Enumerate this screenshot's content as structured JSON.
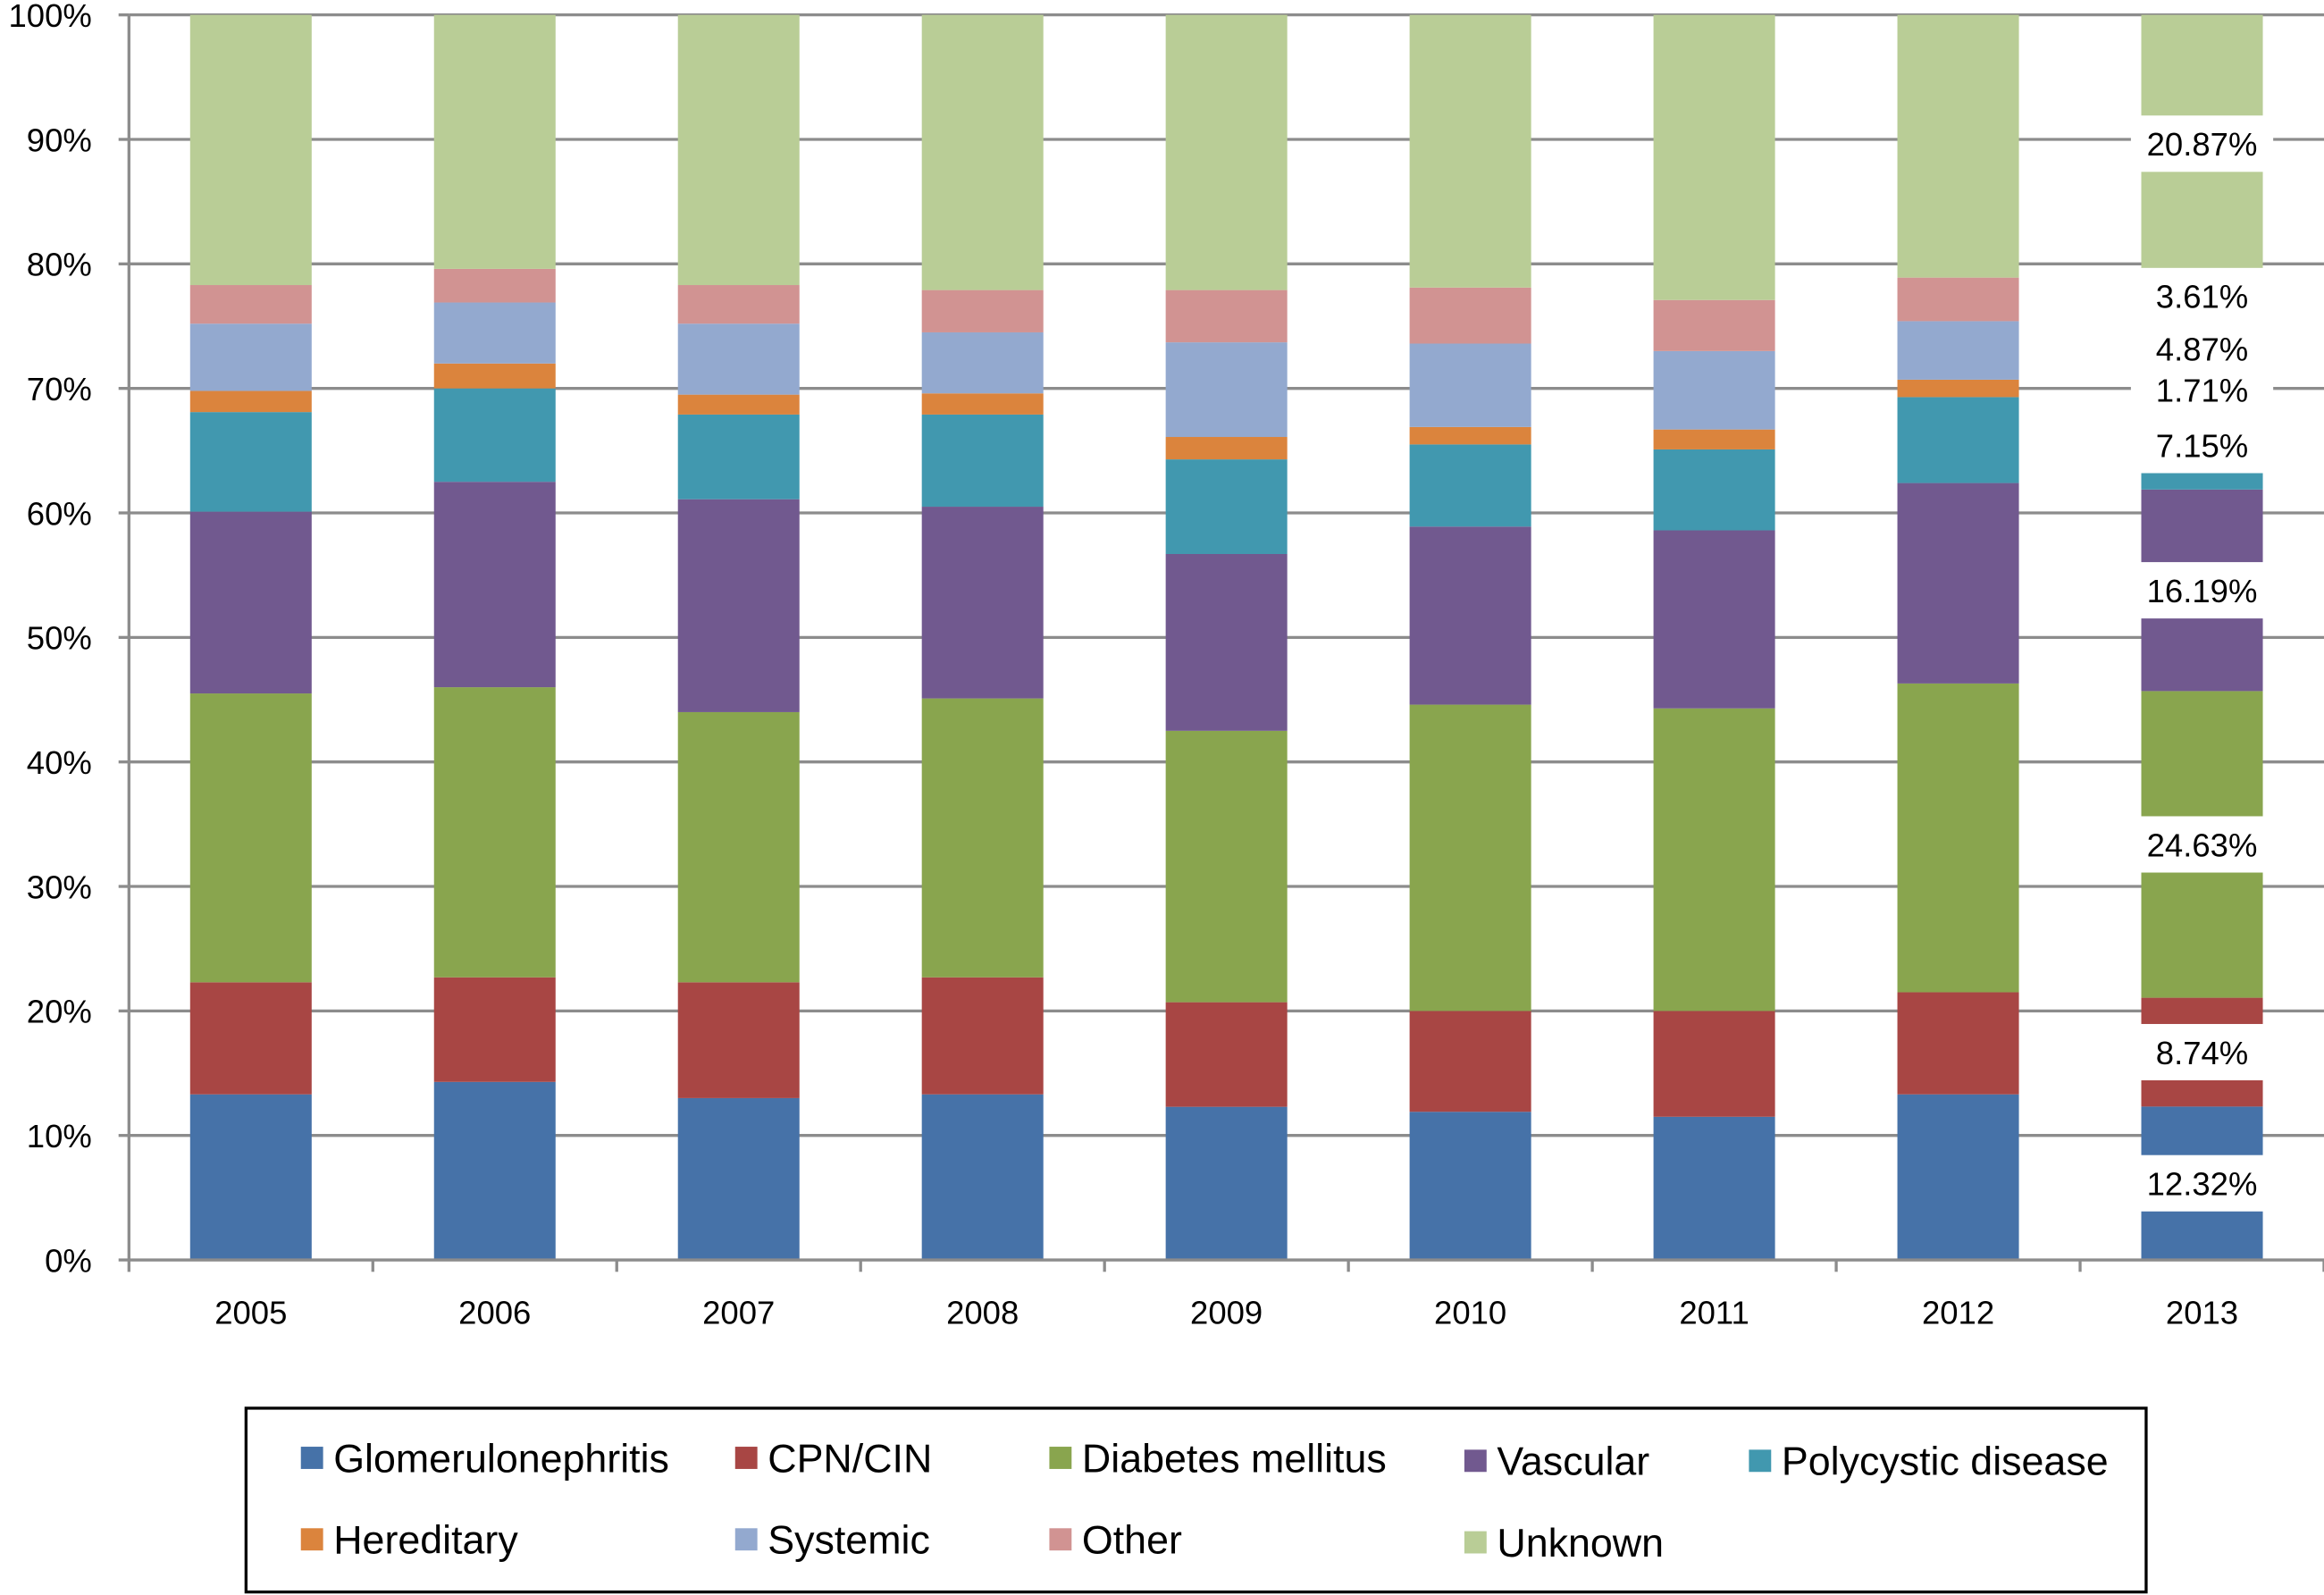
{
  "chart_data": {
    "type": "stacked-bar-100",
    "categories": [
      "2005",
      "2006",
      "2007",
      "2008",
      "2009",
      "2010",
      "2011",
      "2012",
      "2013"
    ],
    "ylim": [
      0,
      100
    ],
    "yticks": [
      "0%",
      "10%",
      "20%",
      "30%",
      "40%",
      "50%",
      "60%",
      "70%",
      "80%",
      "90%",
      "100%"
    ],
    "grid": true,
    "legend_position": "bottom",
    "series": [
      {
        "name": "Glomerulonephritis",
        "color": "#4672a8",
        "values": [
          13.3,
          14.3,
          13.0,
          13.3,
          12.3,
          11.9,
          11.5,
          13.3,
          12.32
        ]
      },
      {
        "name": "CPN/CIN",
        "color": "#a84644",
        "values": [
          9.0,
          8.4,
          9.3,
          9.4,
          8.4,
          8.1,
          8.5,
          8.2,
          8.74
        ]
      },
      {
        "name": "Diabetes mellitus",
        "color": "#89a54e",
        "values": [
          23.2,
          23.3,
          21.7,
          22.4,
          21.8,
          24.6,
          24.3,
          24.8,
          24.63
        ]
      },
      {
        "name": "Vascular",
        "color": "#71598f",
        "values": [
          14.6,
          16.5,
          17.1,
          15.4,
          14.2,
          14.3,
          14.3,
          16.1,
          16.19
        ]
      },
      {
        "name": "Polycystic disease",
        "color": "#4198af",
        "values": [
          8.0,
          7.5,
          6.8,
          7.4,
          7.6,
          6.6,
          6.5,
          6.9,
          7.15
        ]
      },
      {
        "name": "Hereditary",
        "color": "#db843d",
        "values": [
          1.7,
          2.0,
          1.6,
          1.7,
          1.8,
          1.4,
          1.6,
          1.4,
          1.71
        ]
      },
      {
        "name": "Systemic",
        "color": "#93a9cf",
        "values": [
          5.4,
          4.9,
          5.7,
          4.9,
          7.6,
          6.7,
          6.3,
          4.7,
          4.87
        ]
      },
      {
        "name": "Other",
        "color": "#d19392",
        "values": [
          3.1,
          2.7,
          3.1,
          3.4,
          4.2,
          4.5,
          4.1,
          3.5,
          3.61
        ]
      },
      {
        "name": "Unknown",
        "color": "#b9cd96",
        "values": [
          21.7,
          20.4,
          21.7,
          22.1,
          22.1,
          21.9,
          22.9,
          21.1,
          20.87
        ]
      }
    ],
    "data_labels": {
      "category": "2013",
      "labels": [
        "12.32%",
        "8.74%",
        "24.63%",
        "16.19%",
        "7.15%",
        "1.71%",
        "4.87%",
        "3.61%",
        "20.87%"
      ]
    }
  }
}
